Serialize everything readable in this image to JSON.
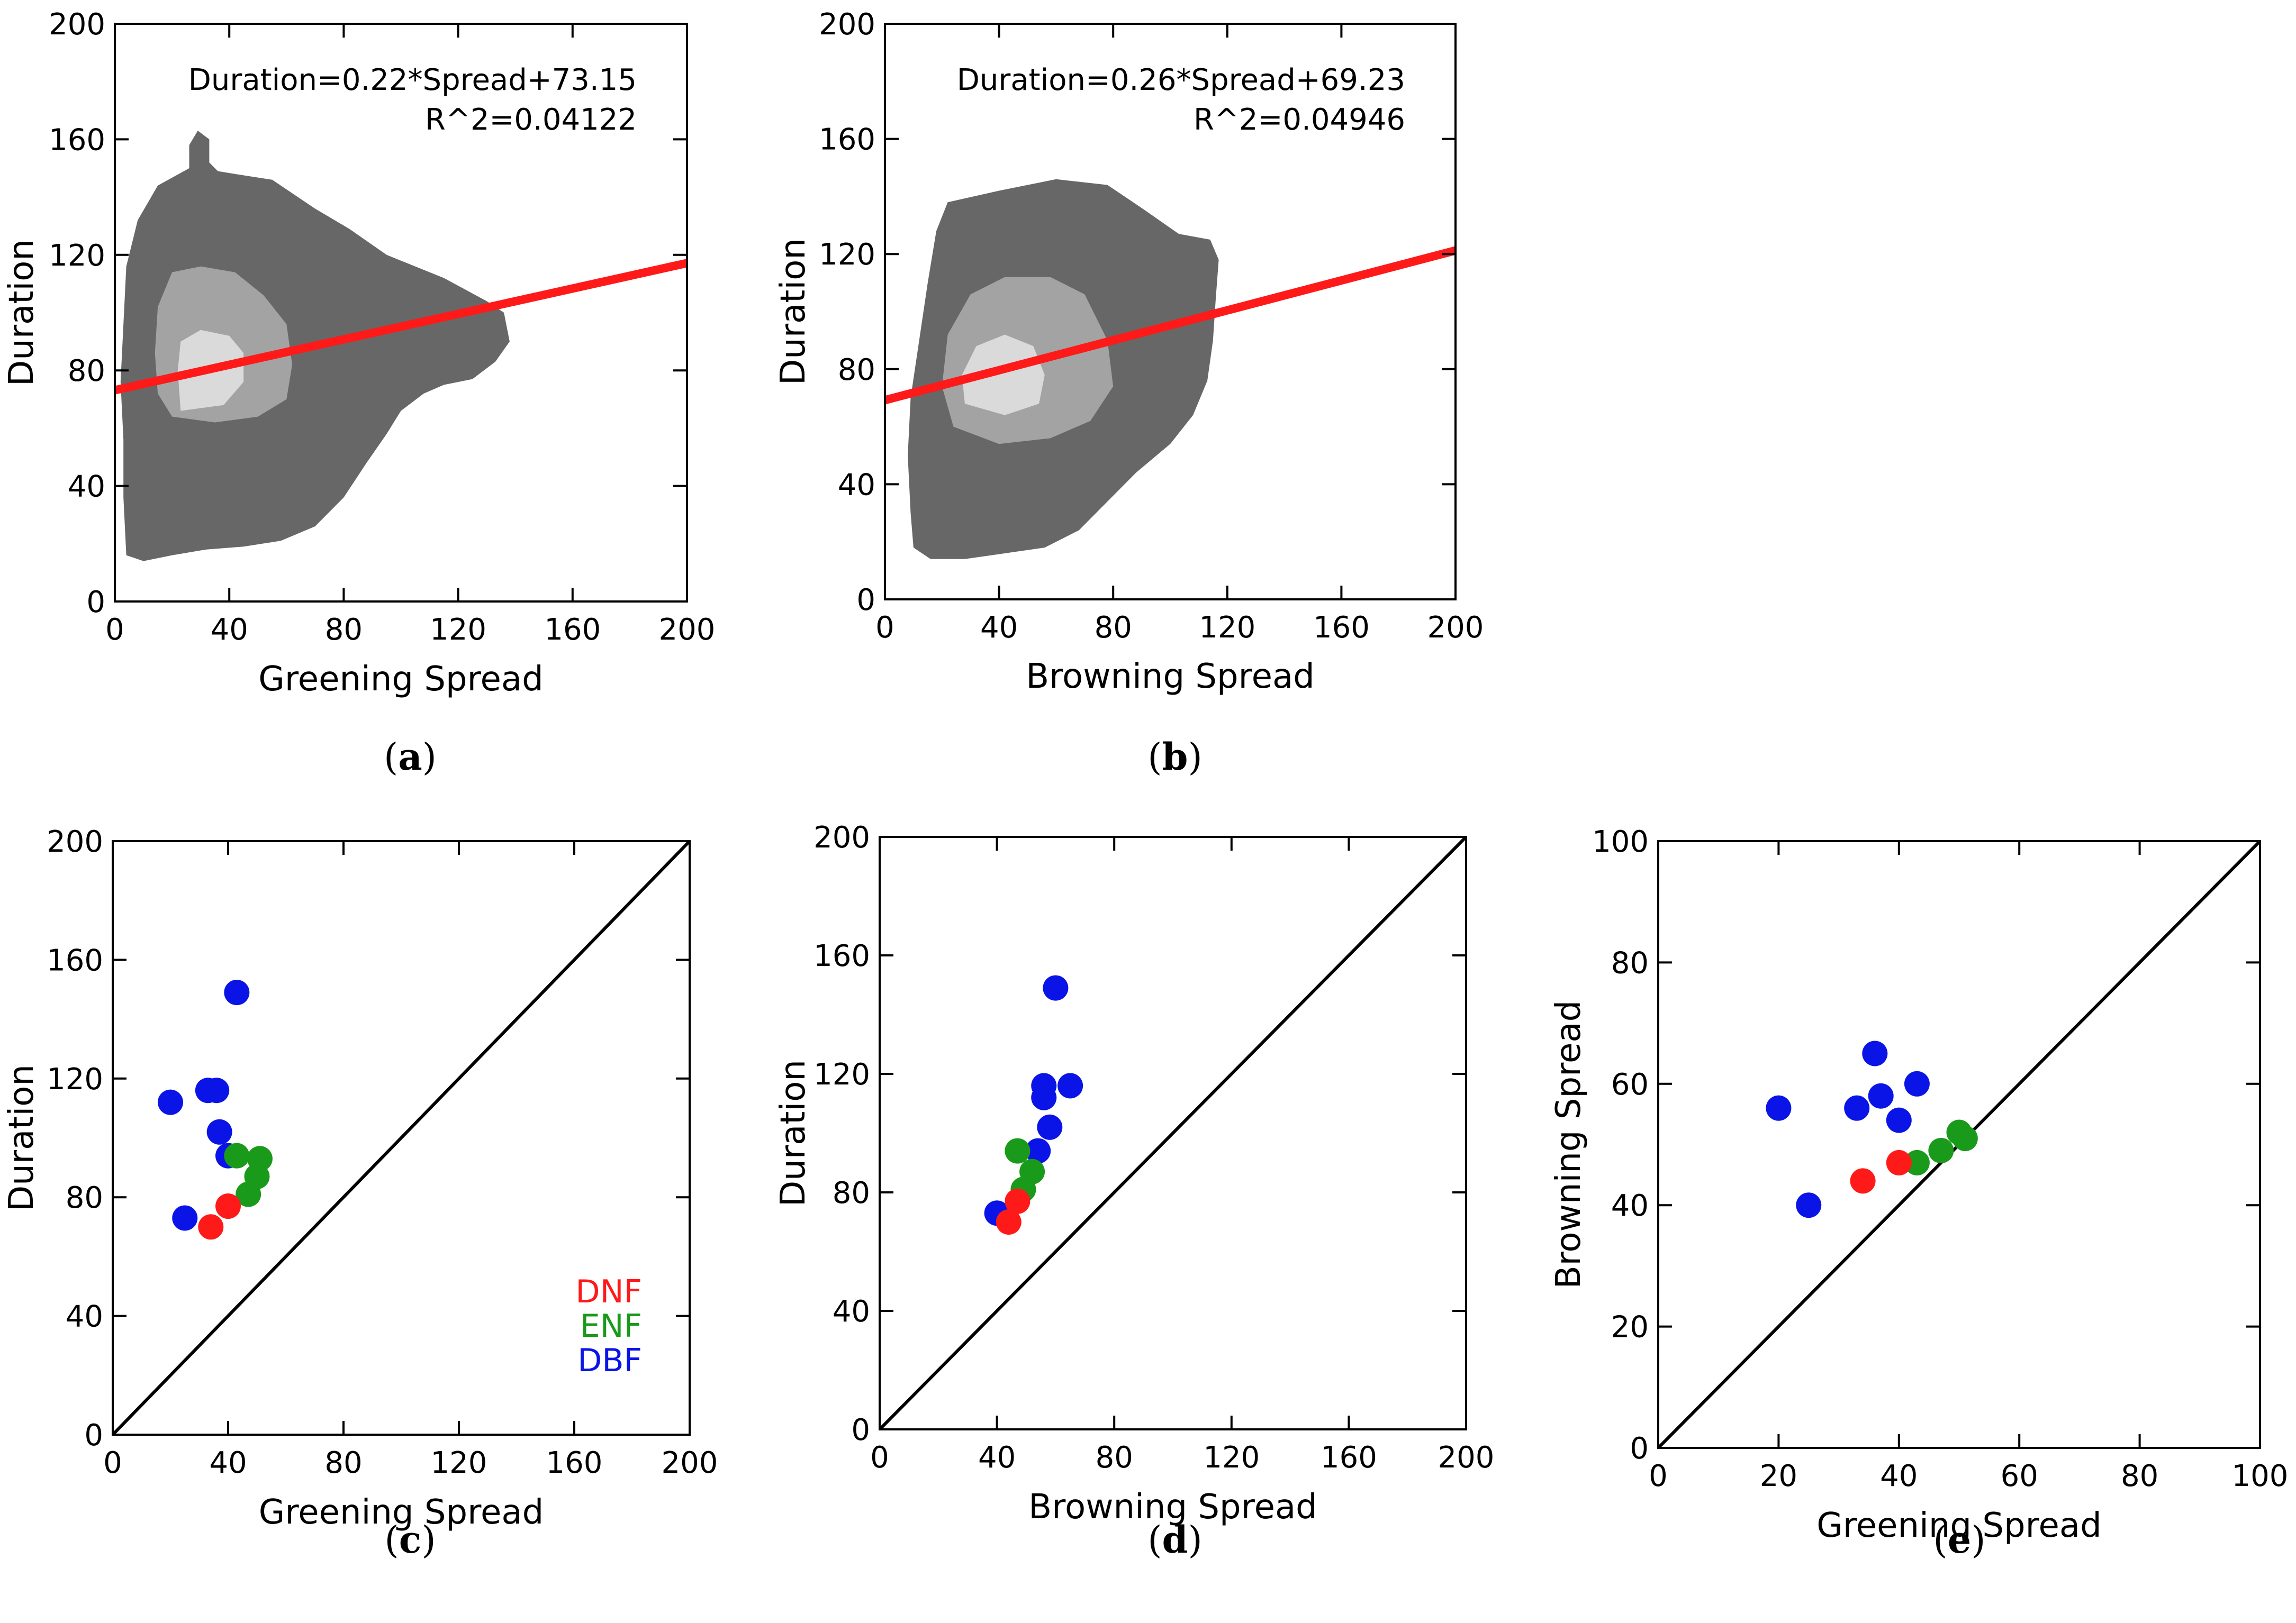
{
  "colors": {
    "red": "#ff1a1a",
    "green": "#1a9a1a",
    "blue": "#0a14e6",
    "density_dark": "#676767",
    "density_mid": "#a3a3a3",
    "density_light": "#dadada"
  },
  "chart_data": [
    {
      "id": "a",
      "type": "heatmap",
      "caption": "(a)",
      "xlabel": "Greening Spread",
      "ylabel": "Duration",
      "xlim": [
        0,
        200
      ],
      "ylim": [
        0,
        200
      ],
      "xticks": [
        0,
        40,
        80,
        120,
        160,
        200
      ],
      "yticks": [
        0,
        40,
        80,
        120,
        160,
        200
      ],
      "fit": {
        "slope": 0.22,
        "intercept": 73.15
      },
      "annotation": [
        "Duration=0.22*Spread+73.15",
        "R^2=0.04122"
      ],
      "density_levels": [
        [
          [
            4,
            16
          ],
          [
            10,
            14
          ],
          [
            20,
            16
          ],
          [
            32,
            18
          ],
          [
            45,
            19
          ],
          [
            58,
            21
          ],
          [
            70,
            26
          ],
          [
            80,
            36
          ],
          [
            88,
            48
          ],
          [
            95,
            58
          ],
          [
            100,
            66
          ],
          [
            108,
            72
          ],
          [
            115,
            75
          ],
          [
            125,
            77
          ],
          [
            133,
            83
          ],
          [
            138,
            90
          ],
          [
            136,
            100
          ],
          [
            130,
            104
          ],
          [
            115,
            112
          ],
          [
            95,
            120
          ],
          [
            82,
            129
          ],
          [
            70,
            136
          ],
          [
            55,
            146
          ],
          [
            42,
            148
          ],
          [
            36,
            149
          ],
          [
            33,
            152
          ],
          [
            33,
            160
          ],
          [
            29,
            163
          ],
          [
            26,
            158
          ],
          [
            26,
            150
          ],
          [
            15,
            144
          ],
          [
            8,
            132
          ],
          [
            4,
            116
          ],
          [
            3,
            96
          ],
          [
            2,
            76
          ],
          [
            3,
            56
          ],
          [
            3,
            36
          ]
        ],
        [
          [
            20,
            64
          ],
          [
            35,
            62
          ],
          [
            50,
            64
          ],
          [
            60,
            70
          ],
          [
            62,
            82
          ],
          [
            60,
            96
          ],
          [
            52,
            106
          ],
          [
            42,
            114
          ],
          [
            30,
            116
          ],
          [
            20,
            114
          ],
          [
            15,
            102
          ],
          [
            14,
            86
          ],
          [
            15,
            72
          ]
        ],
        [
          [
            23,
            66
          ],
          [
            38,
            68
          ],
          [
            45,
            76
          ],
          [
            45,
            86
          ],
          [
            40,
            92
          ],
          [
            30,
            94
          ],
          [
            23,
            90
          ],
          [
            22,
            80
          ]
        ]
      ]
    },
    {
      "id": "b",
      "type": "heatmap",
      "caption": "(b)",
      "xlabel": "Browning Spread",
      "ylabel": "Duration",
      "xlim": [
        0,
        200
      ],
      "ylim": [
        0,
        200
      ],
      "xticks": [
        0,
        40,
        80,
        120,
        160,
        200
      ],
      "yticks": [
        0,
        40,
        80,
        120,
        160,
        200
      ],
      "fit": {
        "slope": 0.26,
        "intercept": 69.23
      },
      "annotation": [
        "Duration=0.26*Spread+69.23",
        "R^2=0.04946"
      ],
      "density_levels": [
        [
          [
            10,
            18
          ],
          [
            16,
            14
          ],
          [
            28,
            14
          ],
          [
            42,
            16
          ],
          [
            56,
            18
          ],
          [
            68,
            24
          ],
          [
            78,
            34
          ],
          [
            88,
            44
          ],
          [
            100,
            54
          ],
          [
            108,
            64
          ],
          [
            113,
            76
          ],
          [
            115,
            90
          ],
          [
            116,
            105
          ],
          [
            117,
            118
          ],
          [
            114,
            125
          ],
          [
            103,
            127
          ],
          [
            90,
            136
          ],
          [
            78,
            144
          ],
          [
            60,
            146
          ],
          [
            40,
            142
          ],
          [
            22,
            138
          ],
          [
            18,
            128
          ],
          [
            15,
            110
          ],
          [
            12,
            90
          ],
          [
            9,
            70
          ],
          [
            8,
            50
          ],
          [
            9,
            30
          ]
        ],
        [
          [
            24,
            60
          ],
          [
            40,
            54
          ],
          [
            58,
            56
          ],
          [
            72,
            62
          ],
          [
            80,
            74
          ],
          [
            78,
            90
          ],
          [
            70,
            106
          ],
          [
            58,
            112
          ],
          [
            42,
            112
          ],
          [
            30,
            106
          ],
          [
            22,
            92
          ],
          [
            20,
            74
          ]
        ],
        [
          [
            28,
            68
          ],
          [
            42,
            64
          ],
          [
            54,
            68
          ],
          [
            56,
            78
          ],
          [
            52,
            88
          ],
          [
            42,
            92
          ],
          [
            32,
            88
          ],
          [
            27,
            78
          ]
        ]
      ]
    },
    {
      "id": "c",
      "type": "scatter",
      "caption": "(c)",
      "xlabel": "Greening Spread",
      "ylabel": "Duration",
      "xlim": [
        0,
        200
      ],
      "ylim": [
        0,
        200
      ],
      "xticks": [
        0,
        40,
        80,
        120,
        160,
        200
      ],
      "yticks": [
        0,
        40,
        80,
        120,
        160,
        200
      ],
      "diagonal": true,
      "legend": [
        {
          "label": "DNF",
          "color": "#ff1a1a"
        },
        {
          "label": "ENF",
          "color": "#1a9a1a"
        },
        {
          "label": "DBF",
          "color": "#0a14e6"
        }
      ],
      "series": [
        {
          "name": "DBF",
          "color": "#0a14e6",
          "points": [
            [
              43,
              149
            ],
            [
              20,
              112
            ],
            [
              33,
              116
            ],
            [
              36,
              116
            ],
            [
              37,
              102
            ],
            [
              40,
              94
            ],
            [
              25,
              73
            ]
          ]
        },
        {
          "name": "ENF",
          "color": "#1a9a1a",
          "points": [
            [
              43,
              94
            ],
            [
              51,
              93
            ],
            [
              50,
              87
            ],
            [
              47,
              81
            ]
          ]
        },
        {
          "name": "DNF",
          "color": "#ff1a1a",
          "points": [
            [
              40,
              77
            ],
            [
              34,
              70
            ]
          ]
        }
      ]
    },
    {
      "id": "d",
      "type": "scatter",
      "caption": "(d)",
      "xlabel": "Browning Spread",
      "ylabel": "Duration",
      "xlim": [
        0,
        200
      ],
      "ylim": [
        0,
        200
      ],
      "xticks": [
        0,
        40,
        80,
        120,
        160,
        200
      ],
      "yticks": [
        0,
        40,
        80,
        120,
        160,
        200
      ],
      "diagonal": true,
      "series": [
        {
          "name": "DBF",
          "color": "#0a14e6",
          "points": [
            [
              60,
              149
            ],
            [
              56,
              116
            ],
            [
              65,
              116
            ],
            [
              56,
              112
            ],
            [
              58,
              102
            ],
            [
              54,
              94
            ],
            [
              40,
              73
            ]
          ]
        },
        {
          "name": "ENF",
          "color": "#1a9a1a",
          "points": [
            [
              47,
              94
            ],
            [
              52,
              87
            ],
            [
              49,
              81
            ]
          ]
        },
        {
          "name": "DNF",
          "color": "#ff1a1a",
          "points": [
            [
              47,
              77
            ],
            [
              44,
              70
            ]
          ]
        }
      ]
    },
    {
      "id": "e",
      "type": "scatter",
      "caption": "(e)",
      "xlabel": "Greening Spread",
      "ylabel": "Browning Spread",
      "xlim": [
        0,
        100
      ],
      "ylim": [
        0,
        100
      ],
      "xticks": [
        0,
        20,
        40,
        60,
        80,
        100
      ],
      "yticks": [
        0,
        20,
        40,
        60,
        80,
        100
      ],
      "diagonal": true,
      "series": [
        {
          "name": "DBF",
          "color": "#0a14e6",
          "points": [
            [
              36,
              65
            ],
            [
              43,
              60
            ],
            [
              37,
              58
            ],
            [
              33,
              56
            ],
            [
              20,
              56
            ],
            [
              40,
              54
            ],
            [
              25,
              40
            ]
          ]
        },
        {
          "name": "ENF",
          "color": "#1a9a1a",
          "points": [
            [
              50,
              52
            ],
            [
              51,
              51
            ],
            [
              47,
              49
            ],
            [
              43,
              47
            ]
          ]
        },
        {
          "name": "DNF",
          "color": "#ff1a1a",
          "points": [
            [
              40,
              47
            ],
            [
              34,
              44
            ]
          ]
        }
      ]
    }
  ]
}
